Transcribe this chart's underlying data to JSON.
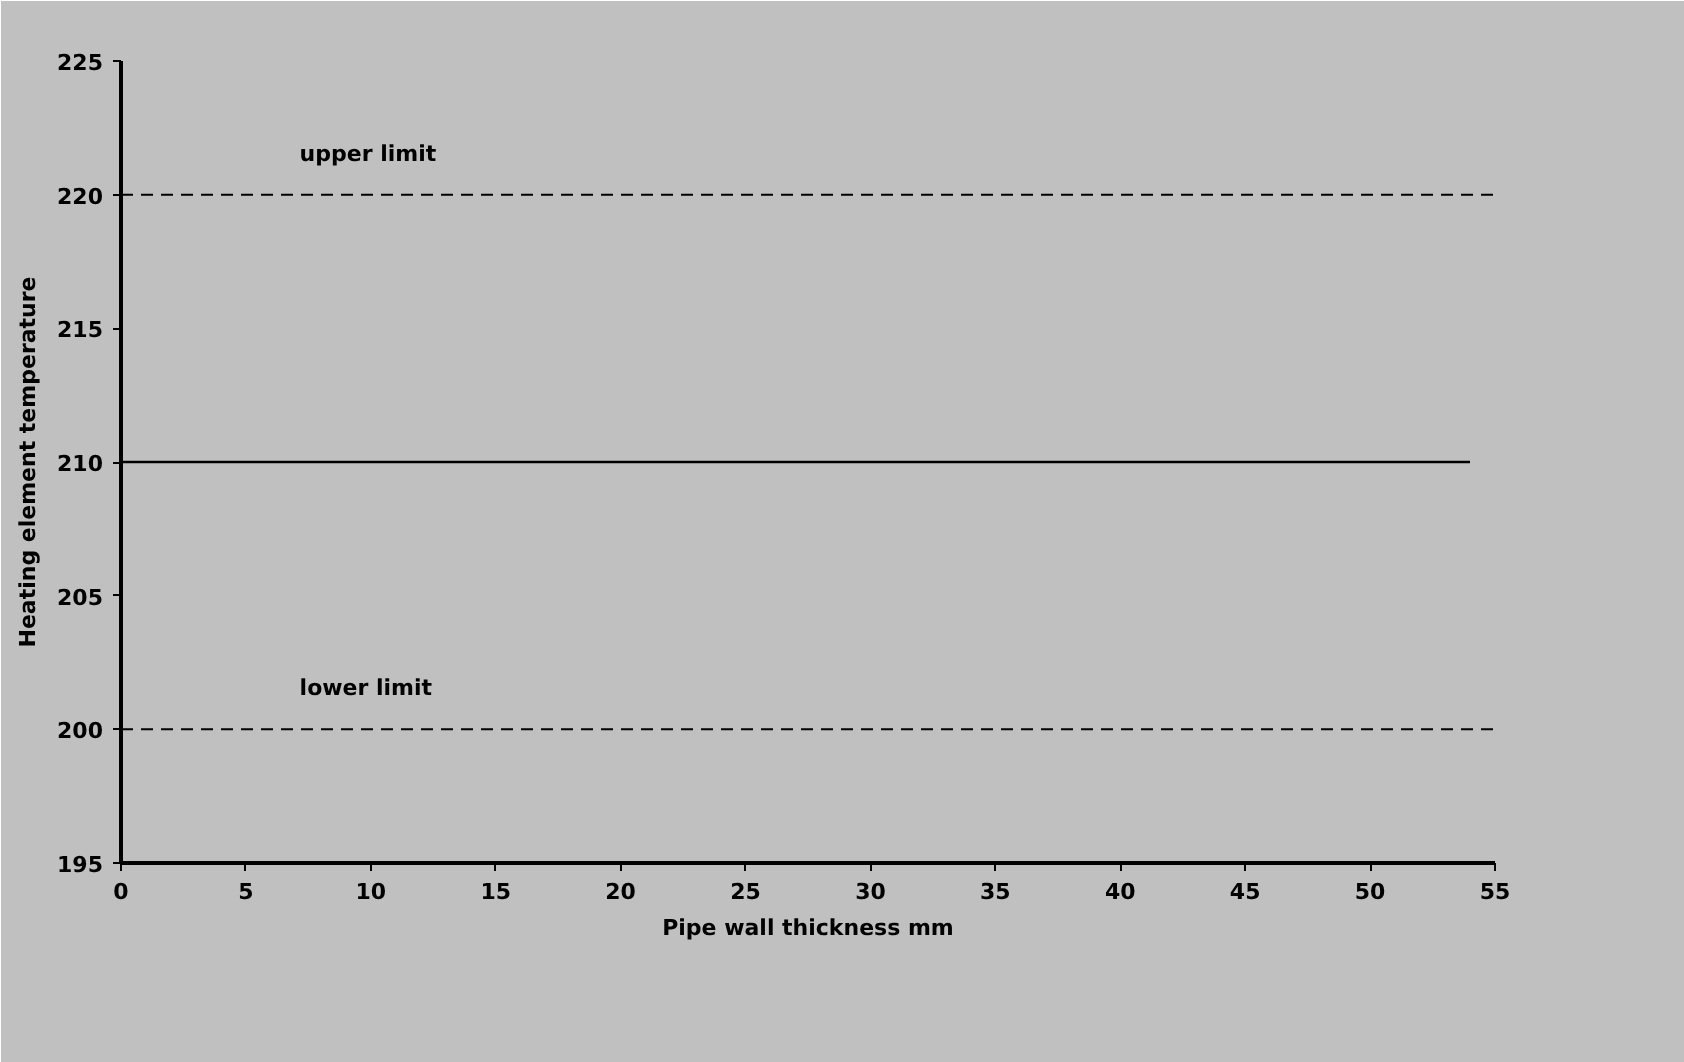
{
  "chart_data": {
    "type": "line",
    "xlabel": "Pipe wall thickness mm",
    "ylabel": "Heating element temperature",
    "series": [
      {
        "color": "#000000",
        "x": [
          0,
          54
        ],
        "values": [
          210,
          210
        ]
      }
    ],
    "xlim": [
      0,
      55
    ],
    "xticks": [
      0,
      5,
      10,
      15,
      20,
      25,
      30,
      35,
      40,
      45,
      50,
      55
    ],
    "ylim": [
      195,
      225
    ],
    "yticks": [
      195,
      200,
      205,
      210,
      215,
      220,
      225
    ],
    "ref_lines": [
      {
        "axis": "y",
        "value": 220,
        "label": "upper limit",
        "color": "#000000",
        "line_style": "dashed"
      },
      {
        "axis": "y",
        "value": 200,
        "label": "lower limit",
        "color": "#000000",
        "line_style": "dashed"
      }
    ],
    "grid": false,
    "marker": "none",
    "line_style": "solid"
  }
}
